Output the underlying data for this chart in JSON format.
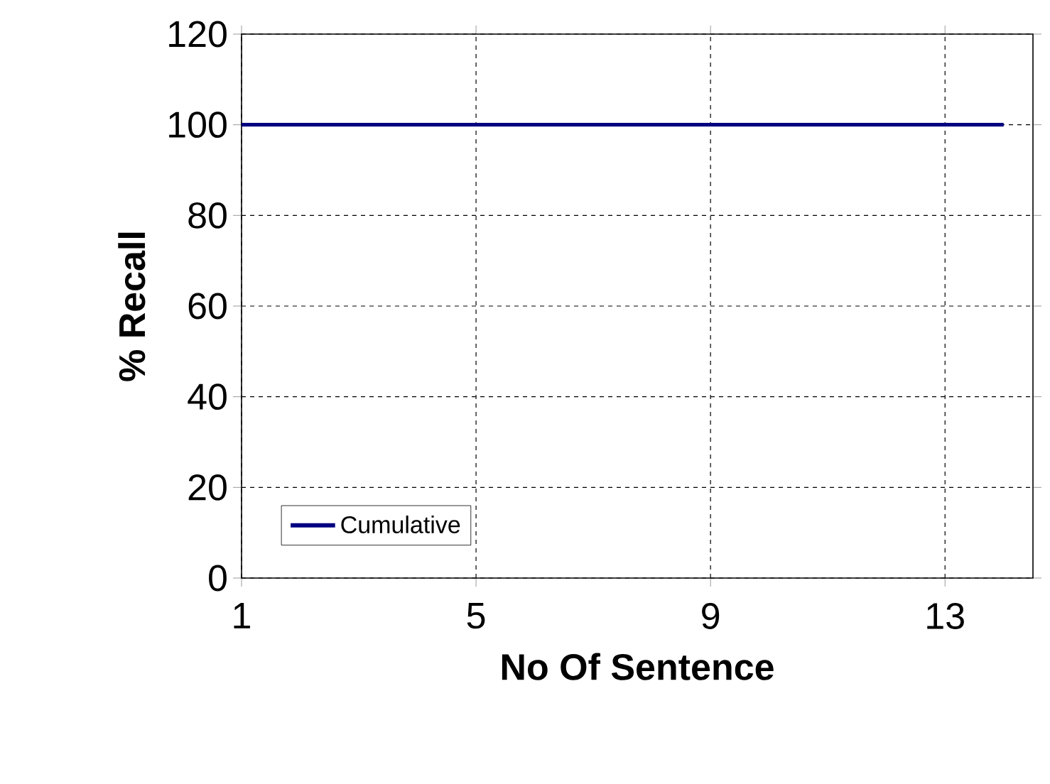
{
  "chart_data": {
    "type": "line",
    "xlabel": "No Of Sentence",
    "ylabel": "% Recall",
    "x": [
      1,
      14
    ],
    "series": [
      {
        "name": "Cumulative",
        "color": "#000080",
        "values": [
          100,
          100
        ]
      }
    ],
    "xlim": [
      1,
      14.5
    ],
    "xticks": [
      1,
      5,
      9,
      13
    ],
    "ylim": [
      0,
      120
    ],
    "yticks": [
      0,
      20,
      40,
      60,
      80,
      100,
      120
    ],
    "grid": true,
    "legend": "bottom left",
    "marker": "none",
    "line_style": "solid"
  }
}
